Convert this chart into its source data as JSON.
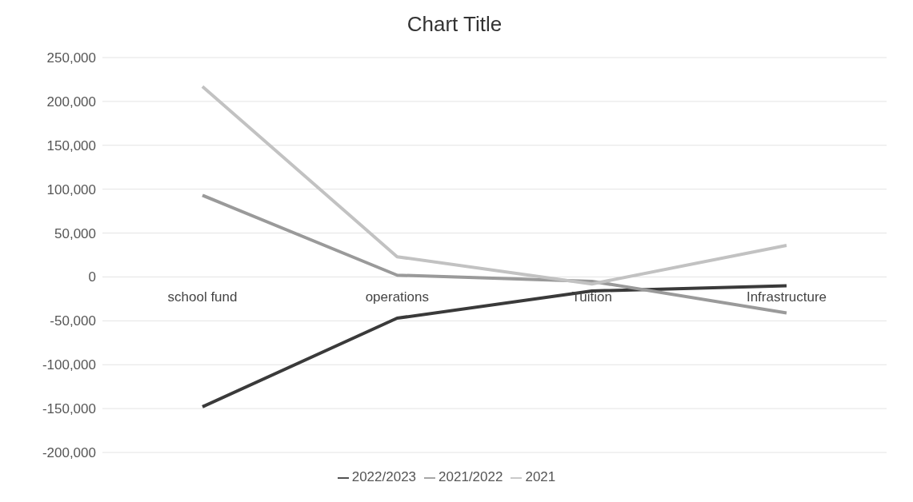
{
  "chart_data": {
    "type": "line",
    "title": "Chart Title",
    "categories": [
      "school fund",
      "operations",
      "Tuition",
      "Infrastructure"
    ],
    "series": [
      {
        "name": "2022/2023",
        "color": "#3a3a3a",
        "values": [
          -148000,
          -47000,
          -16000,
          -10000
        ]
      },
      {
        "name": "2021/2022",
        "color": "#9a9a9a",
        "values": [
          93000,
          2000,
          -5000,
          -41000
        ]
      },
      {
        "name": "2021",
        "color": "#c2c2c2",
        "values": [
          217000,
          23000,
          -8000,
          36000
        ]
      }
    ],
    "ylim": [
      -200000,
      250000
    ],
    "yticks": [
      {
        "value": -200000,
        "label": "-200,000"
      },
      {
        "value": -150000,
        "label": "-150,000"
      },
      {
        "value": -100000,
        "label": "-100,000"
      },
      {
        "value": -50000,
        "label": "-50,000"
      },
      0,
      {
        "value": 50000,
        "label": "50,000"
      },
      {
        "value": 100000,
        "label": "100,000"
      },
      {
        "value": 150000,
        "label": "150,000"
      },
      {
        "value": 200000,
        "label": "200,000"
      },
      {
        "value": 250000,
        "label": "250,000"
      }
    ],
    "grid": "y",
    "legend": "bottom",
    "marker": "none",
    "line_style": "solid"
  }
}
